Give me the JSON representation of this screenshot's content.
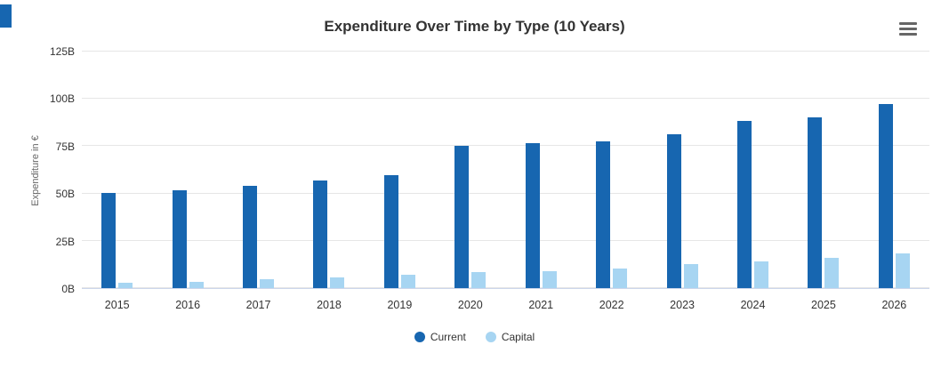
{
  "chart_data": {
    "type": "bar",
    "title": "Expenditure Over Time by Type (10 Years)",
    "xlabel": "",
    "ylabel": "Expenditure in €",
    "categories": [
      "2015",
      "2016",
      "2017",
      "2018",
      "2019",
      "2020",
      "2021",
      "2022",
      "2023",
      "2024",
      "2025",
      "2026"
    ],
    "series": [
      {
        "name": "Current",
        "color": "#1766b0",
        "values": [
          50.5,
          51.5,
          54,
          57,
          59.5,
          75,
          76.5,
          77.5,
          81.5,
          88.5,
          90,
          97.5
        ]
      },
      {
        "name": "Capital",
        "color": "#a7d5f2",
        "values": [
          3,
          3.5,
          4.5,
          5.5,
          7,
          8.5,
          9,
          10.5,
          12.5,
          14,
          16,
          18.5
        ]
      }
    ],
    "unit": "B",
    "ylim": [
      0,
      125
    ],
    "yticks": [
      "0B",
      "25B",
      "50B",
      "75B",
      "100B",
      "125B"
    ],
    "ytick_values": [
      0,
      25,
      50,
      75,
      100,
      125
    ],
    "grid": true,
    "legend_position": "bottom"
  },
  "colors": {
    "current": "#1766b0",
    "capital": "#a7d5f2",
    "accent_strip": "#1766b0",
    "gridline": "#e6e6e6",
    "axis_line": "#ccd6eb"
  },
  "menu": {
    "icon": "hamburger-menu"
  }
}
